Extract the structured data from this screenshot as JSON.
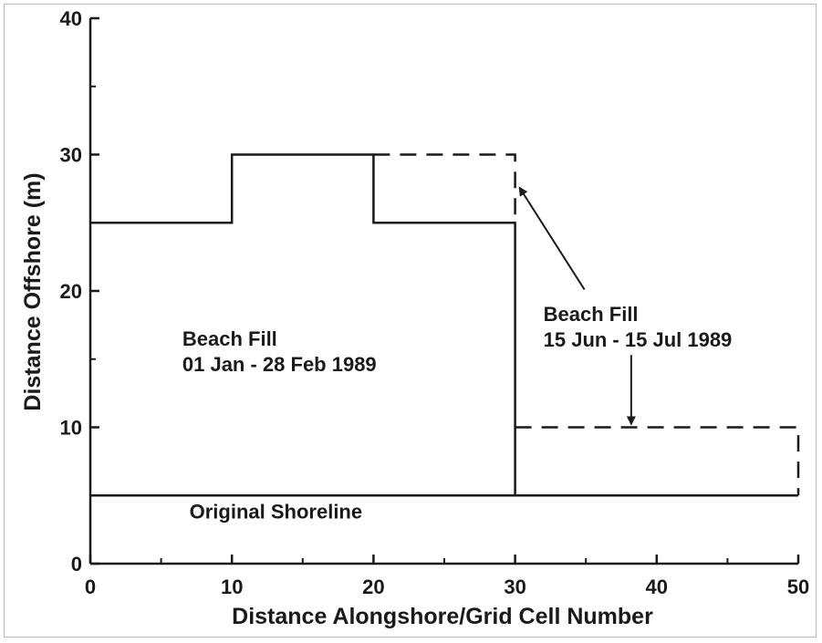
{
  "chart_data": {
    "type": "line",
    "title": "",
    "xlabel": "Distance Alongshore/Grid Cell Number",
    "ylabel": "Distance Offshore (m)",
    "xlim": [
      0,
      50
    ],
    "ylim": [
      0,
      40
    ],
    "x_ticks": [
      0,
      10,
      20,
      30,
      40,
      50
    ],
    "y_ticks": [
      0,
      10,
      20,
      30,
      40
    ],
    "x_tick_labels": [
      "0",
      "10",
      "20",
      "30",
      "40",
      "50"
    ],
    "y_tick_labels": [
      "0",
      "10",
      "20",
      "30",
      "40"
    ],
    "x_minor_ticks": [
      5,
      15,
      25,
      35,
      45
    ],
    "y_minor_ticks": [
      5,
      15,
      25,
      35
    ],
    "grid": false,
    "legend": "none",
    "series": [
      {
        "style": "solid",
        "x": [
          0,
          10,
          10,
          20,
          20,
          30,
          30
        ],
        "y": [
          25,
          25,
          30,
          30,
          25,
          25,
          5
        ]
      },
      {
        "style": "dashed",
        "x": [
          20,
          30,
          30
        ],
        "y": [
          30,
          30,
          25
        ]
      },
      {
        "style": "dashed",
        "x": [
          30,
          50,
          50
        ],
        "y": [
          10,
          10,
          5
        ]
      },
      {
        "style": "solid",
        "x": [
          0,
          50
        ],
        "y": [
          5,
          5
        ]
      }
    ],
    "annotations": [
      {
        "name": "fill-1",
        "lines": [
          "Beach Fill",
          "01 Jan - 28 Feb 1989"
        ],
        "x": 6.5,
        "y": 16.0
      },
      {
        "name": "fill-2",
        "lines": [
          "Beach Fill",
          "15 Jun - 15 Jul 1989"
        ],
        "x": 32.0,
        "y": 17.8
      },
      {
        "name": "shoreline",
        "lines": [
          "Original Shoreline"
        ],
        "x": 7.0,
        "y": 3.3
      }
    ],
    "arrows": [
      {
        "from": [
          34.9,
          20.1
        ],
        "to": [
          30.3,
          27.6
        ]
      },
      {
        "from": [
          38.2,
          15.3
        ],
        "to": [
          38.2,
          10.2
        ]
      }
    ]
  }
}
